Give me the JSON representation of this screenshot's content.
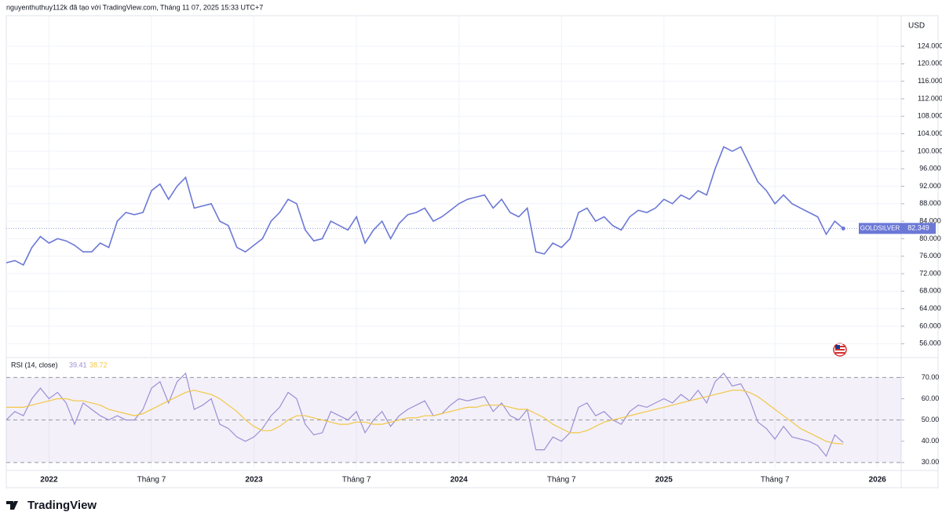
{
  "header": {
    "attribution": "nguyenthuthuy112k đã tạo với TradingView.com, Tháng 11 07, 2025 15:33 UTC+7"
  },
  "chart_data": [
    {
      "type": "line",
      "currency": "USD",
      "categories": [
        null,
        null,
        null,
        null,
        null,
        "2022",
        null,
        null,
        null,
        null,
        null,
        null,
        null,
        null,
        null,
        null,
        null,
        "Tháng 7",
        null,
        null,
        null,
        null,
        null,
        null,
        null,
        null,
        null,
        null,
        null,
        "2023",
        null,
        null,
        null,
        null,
        null,
        null,
        null,
        null,
        null,
        null,
        null,
        "Tháng 7",
        null,
        null,
        null,
        null,
        null,
        null,
        null,
        null,
        null,
        null,
        null,
        "2024",
        null,
        null,
        null,
        null,
        null,
        null,
        null,
        null,
        null,
        null,
        null,
        "Tháng 7",
        null,
        null,
        null,
        null,
        null,
        null,
        null,
        null,
        null,
        null,
        null,
        "2025",
        null,
        null,
        null,
        null,
        null,
        null,
        null,
        null,
        null,
        null,
        null,
        null,
        "Tháng 7",
        null,
        null,
        null,
        null,
        null,
        null,
        null,
        null,
        null,
        null,
        null,
        "2026"
      ],
      "series": [
        {
          "name": "GOLDSILVER",
          "color": "#6b78d6",
          "values": [
            74.5,
            75,
            74,
            78,
            80.5,
            79,
            80,
            79.5,
            78.5,
            77,
            77,
            79,
            78,
            84,
            86,
            85.5,
            86,
            91,
            92.5,
            89,
            92,
            94,
            87,
            87.5,
            88,
            84,
            83,
            78,
            77,
            78.5,
            80,
            84,
            86,
            89,
            88,
            82,
            79.5,
            80,
            84,
            83,
            82,
            85,
            79,
            82,
            84,
            80,
            83.5,
            85.5,
            86,
            87,
            84,
            85,
            86.5,
            88,
            89,
            89.5,
            90,
            87,
            89,
            86,
            85,
            87,
            77,
            76.5,
            79,
            78,
            80,
            86,
            87,
            84,
            85,
            83,
            82,
            85,
            86.5,
            86,
            87,
            89,
            88,
            90,
            89,
            91,
            90,
            96,
            101,
            100,
            101,
            97,
            93,
            91,
            88,
            90,
            88,
            87,
            86,
            85,
            81,
            84,
            82.349,
            null,
            null,
            null,
            null
          ]
        }
      ],
      "ylim": [
        53,
        131
      ],
      "yticks": [
        {
          "value": 56,
          "label": "56.000"
        },
        {
          "value": 60,
          "label": "60.000"
        },
        {
          "value": 64,
          "label": "64.000"
        },
        {
          "value": 68,
          "label": "68.000"
        },
        {
          "value": 72,
          "label": "72.000"
        },
        {
          "value": 76,
          "label": "76.000"
        },
        {
          "value": 80,
          "label": "80.000"
        },
        {
          "value": 84,
          "label": "84.000"
        },
        {
          "value": 88,
          "label": "88.000"
        },
        {
          "value": 92,
          "label": "92.000"
        },
        {
          "value": 96,
          "label": "96.000"
        },
        {
          "value": 100,
          "label": "100.000"
        },
        {
          "value": 104,
          "label": "104.000"
        },
        {
          "value": 108,
          "label": "108.000"
        },
        {
          "value": 112,
          "label": "112.000"
        },
        {
          "value": 116,
          "label": "116.000"
        },
        {
          "value": 120,
          "label": "120.000"
        },
        {
          "value": 124,
          "label": "124.000"
        }
      ],
      "grid": true
    },
    {
      "type": "line",
      "title": "RSI (14, close)",
      "series": [
        {
          "color": "#9c8fd4",
          "values": [
            50,
            54,
            52,
            60,
            65,
            60,
            63,
            58,
            48,
            58,
            55,
            52,
            50,
            52,
            50,
            50,
            55,
            65,
            68,
            58,
            68,
            72,
            55,
            57,
            60,
            48,
            46,
            42,
            40,
            42,
            46,
            52,
            56,
            63,
            60,
            48,
            43,
            44,
            54,
            52,
            50,
            54,
            44,
            50,
            54,
            47,
            52,
            55,
            57,
            59,
            52,
            53,
            57,
            60,
            59,
            60,
            61,
            54,
            58,
            52,
            50,
            55,
            36,
            36,
            42,
            40,
            44,
            56,
            58,
            52,
            54,
            50,
            48,
            54,
            57,
            56,
            58,
            60,
            58,
            62,
            59,
            64,
            58,
            68,
            72,
            66,
            67,
            60,
            49,
            46,
            41,
            47,
            42,
            41,
            40,
            38,
            33,
            43,
            39.41,
            null,
            null,
            null,
            null
          ]
        },
        {
          "color": "#f2c744",
          "values": [
            56,
            56,
            56,
            57,
            58,
            59,
            60,
            60,
            59,
            59,
            58,
            57,
            55,
            54,
            53,
            52,
            53,
            55,
            57,
            59,
            61,
            63,
            64,
            63,
            62,
            60,
            57,
            54,
            50,
            47,
            45,
            45,
            47,
            50,
            52,
            52,
            51,
            50,
            49,
            48,
            48,
            49,
            49,
            48,
            48,
            49,
            50,
            51,
            51,
            52,
            52,
            53,
            54,
            55,
            56,
            56,
            57,
            57,
            57,
            56,
            55,
            55,
            53,
            51,
            48,
            46,
            44,
            44,
            45,
            47,
            49,
            50,
            51,
            52,
            53,
            54,
            55,
            56,
            57,
            58,
            59,
            60,
            61,
            62,
            63,
            64,
            64,
            63,
            61,
            58,
            55,
            52,
            49,
            46,
            44,
            42,
            40,
            39,
            38.72,
            null,
            null,
            null,
            null
          ]
        }
      ],
      "ylim": [
        27,
        79
      ],
      "yticks": [
        {
          "value": 30,
          "label": "30.00"
        },
        {
          "value": 40,
          "label": "40.00"
        },
        {
          "value": 50,
          "label": "50.00"
        },
        {
          "value": 60,
          "label": "60.00"
        },
        {
          "value": 70,
          "label": "70.00"
        }
      ],
      "band": [
        30,
        70
      ],
      "levels": [
        70,
        50,
        30
      ]
    }
  ],
  "footer": {
    "logo": "TradingView"
  }
}
